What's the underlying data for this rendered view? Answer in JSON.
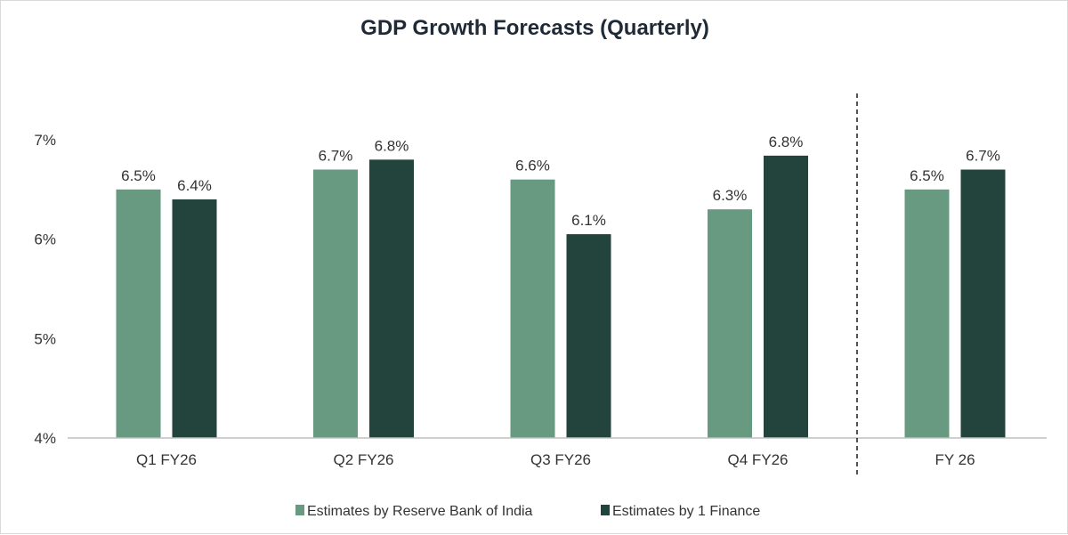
{
  "chart_data": {
    "type": "bar",
    "title": "GDP Growth Forecasts (Quarterly)",
    "xlabel": "",
    "ylabel": "",
    "categories": [
      "Q1 FY26",
      "Q2 FY26",
      "Q3 FY26",
      "Q4 FY26",
      "FY 26"
    ],
    "series": [
      {
        "name": "Estimates by Reserve Bank of India",
        "color": "#679a80",
        "values": [
          6.5,
          6.7,
          6.6,
          6.3,
          6.5
        ],
        "labels": [
          "6.5%",
          "6.7%",
          "6.6%",
          "6.3%",
          "6.5%"
        ]
      },
      {
        "name": "Estimates by 1 Finance",
        "color": "#23443c",
        "values": [
          6.4,
          6.8,
          6.05,
          6.84,
          6.7
        ],
        "labels": [
          "6.4%",
          "6.8%",
          "6.1%",
          "6.8%",
          "6.7%"
        ]
      }
    ],
    "ylim": [
      4,
      7
    ],
    "yticks": [
      4,
      5,
      6,
      7
    ],
    "ytick_labels": [
      "4%",
      "5%",
      "6%",
      "7%"
    ],
    "grid": false,
    "legend_position": "bottom",
    "separator_before_category": "FY 26"
  }
}
